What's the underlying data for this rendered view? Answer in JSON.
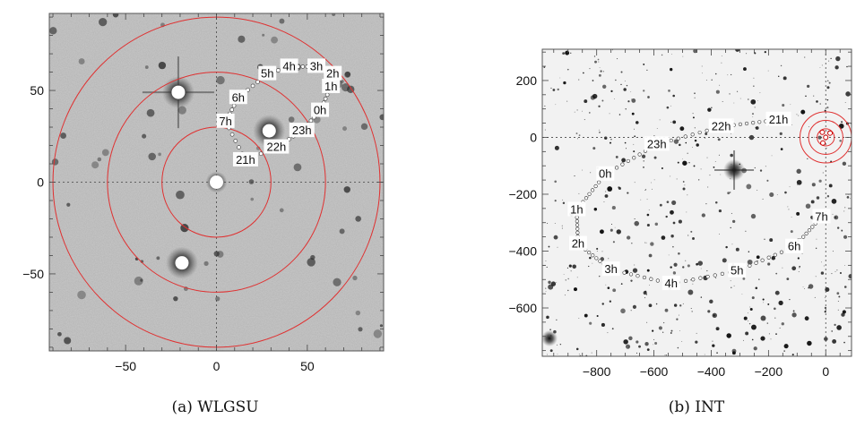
{
  "figures": [
    {
      "caption": "(a) WLGSU",
      "chart_data": {
        "type": "scatter",
        "title": "",
        "xlabel": "",
        "ylabel": "",
        "xlim": [
          -92,
          92
        ],
        "ylim": [
          -92,
          92
        ],
        "xticks": [
          -50,
          0,
          50
        ],
        "yticks": [
          -50,
          0,
          50
        ],
        "circle_radii": [
          30,
          60,
          90
        ],
        "circle_color": "#e03030",
        "marked_stars": [
          {
            "x": 0,
            "y": 0
          },
          {
            "x": -21,
            "y": 49
          },
          {
            "x": 29,
            "y": 28
          },
          {
            "x": -19,
            "y": -44
          }
        ],
        "hour_labels": [
          {
            "label": "21h",
            "x": 16,
            "y": 12
          },
          {
            "label": "22h",
            "x": 33,
            "y": 19
          },
          {
            "label": "23h",
            "x": 47,
            "y": 28
          },
          {
            "label": "0h",
            "x": 57,
            "y": 39
          },
          {
            "label": "1h",
            "x": 63,
            "y": 52
          },
          {
            "label": "2h",
            "x": 64,
            "y": 59
          },
          {
            "label": "3h",
            "x": 55,
            "y": 63
          },
          {
            "label": "4h",
            "x": 40,
            "y": 63
          },
          {
            "label": "5h",
            "x": 28,
            "y": 59
          },
          {
            "label": "6h",
            "x": 12,
            "y": 46
          },
          {
            "label": "7h",
            "x": 5,
            "y": 33
          }
        ]
      }
    },
    {
      "caption": "(b) INT",
      "chart_data": {
        "type": "scatter",
        "title": "",
        "xlabel": "",
        "ylabel": "",
        "xlim": [
          -990,
          90
        ],
        "ylim": [
          -770,
          310
        ],
        "xticks": [
          -800,
          -600,
          -400,
          -200,
          0
        ],
        "yticks": [
          200,
          0,
          -200,
          -400,
          -600
        ],
        "circle_radii": [
          30,
          60,
          90
        ],
        "circle_color": "#e03030",
        "bright_star": {
          "x": -320,
          "y": -115
        },
        "hour_labels": [
          {
            "label": "21h",
            "x": -165,
            "y": 62
          },
          {
            "label": "22h",
            "x": -365,
            "y": 38
          },
          {
            "label": "23h",
            "x": -590,
            "y": -25
          },
          {
            "label": "0h",
            "x": -770,
            "y": -130
          },
          {
            "label": "1h",
            "x": -870,
            "y": -255
          },
          {
            "label": "2h",
            "x": -865,
            "y": -375
          },
          {
            "label": "3h",
            "x": -750,
            "y": -465
          },
          {
            "label": "4h",
            "x": -540,
            "y": -515
          },
          {
            "label": "5h",
            "x": -310,
            "y": -470
          },
          {
            "label": "6h",
            "x": -110,
            "y": -385
          },
          {
            "label": "7h",
            "x": -15,
            "y": -280
          }
        ]
      }
    }
  ]
}
